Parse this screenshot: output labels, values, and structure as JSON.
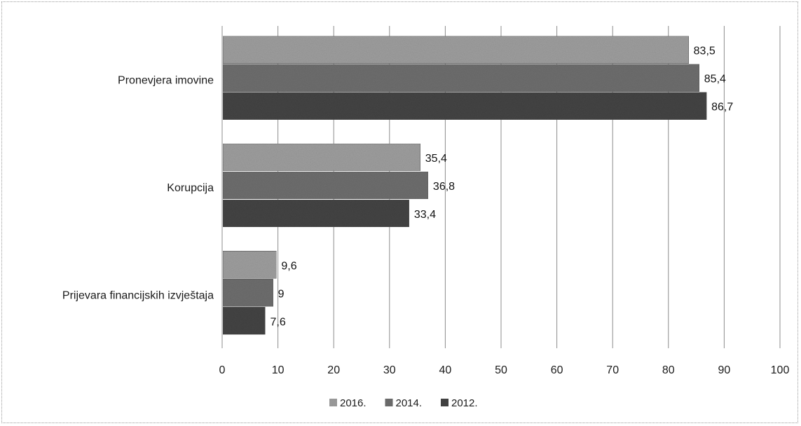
{
  "chart_data": {
    "type": "bar",
    "orientation": "horizontal",
    "categories": [
      "Pronevjera imovine",
      "Korupcija",
      "Prijevara financijskih izvještaja"
    ],
    "series": [
      {
        "name": "2016.",
        "values": [
          83.5,
          35.4,
          9.6
        ],
        "labels": [
          "83,5",
          "35,4",
          "9,6"
        ],
        "color": "#9e9e9e"
      },
      {
        "name": "2014.",
        "values": [
          85.4,
          36.8,
          9
        ],
        "labels": [
          "85,4",
          "36,8",
          "9"
        ],
        "color": "#6e6e6e"
      },
      {
        "name": "2012.",
        "values": [
          86.7,
          33.4,
          7.6
        ],
        "labels": [
          "86,7",
          "33,4",
          "7,6"
        ],
        "color": "#444444"
      }
    ],
    "xlim": [
      0,
      100
    ],
    "xticks": [
      0,
      10,
      20,
      30,
      40,
      50,
      60,
      70,
      80,
      90,
      100
    ],
    "grid": true,
    "legend": "bottom"
  }
}
